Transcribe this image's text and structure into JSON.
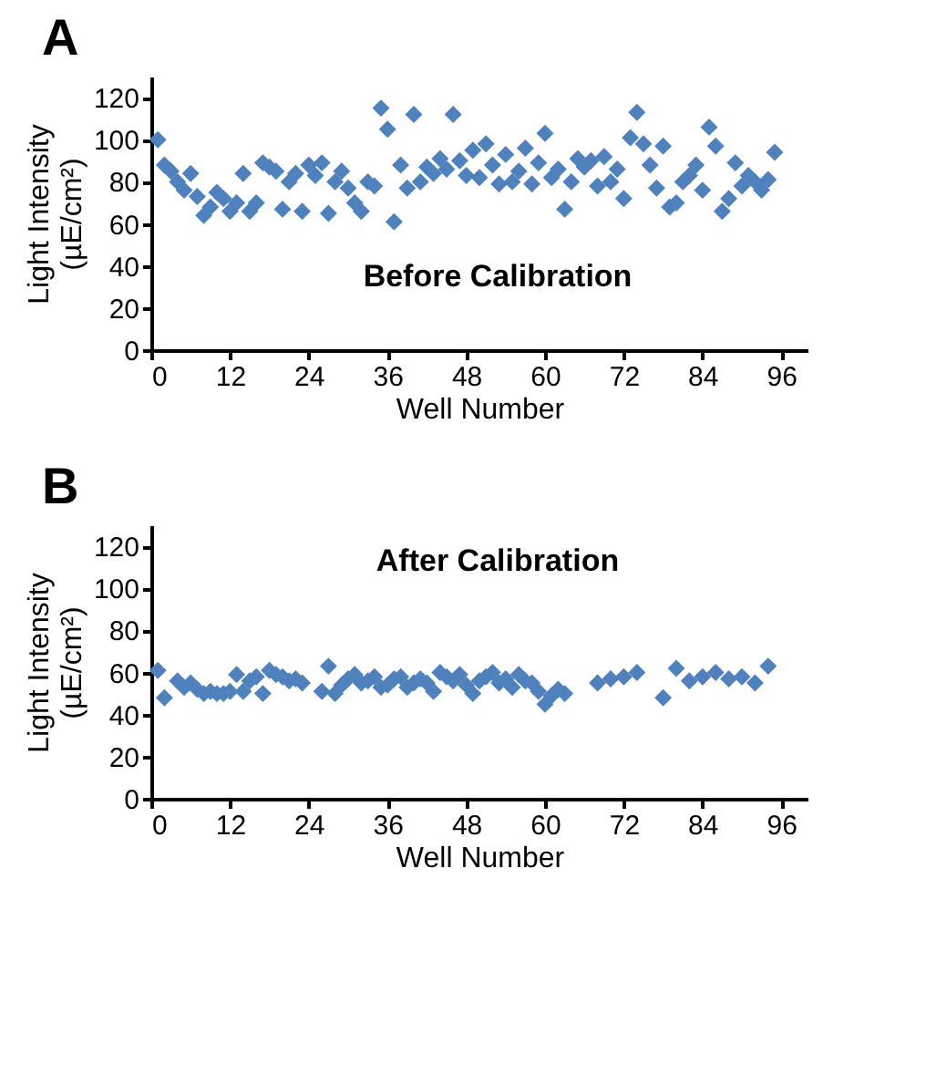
{
  "chart_data": [
    {
      "type": "scatter",
      "title": "A",
      "xlabel": "Well Number",
      "ylabel": "Light Intensity\n(µE/cm²)",
      "annotations": [
        "Before Calibration"
      ],
      "marker": "diamond",
      "grid": false,
      "xlim": [
        0,
        100
      ],
      "ylim": [
        0,
        130
      ],
      "xticks": [
        0,
        12,
        24,
        36,
        48,
        60,
        72,
        84,
        96
      ],
      "yticks": [
        0,
        20,
        40,
        60,
        80,
        100,
        120
      ],
      "x": [
        1,
        2,
        3,
        4,
        5,
        6,
        7,
        8,
        9,
        10,
        11,
        12,
        13,
        14,
        15,
        16,
        17,
        18,
        19,
        20,
        21,
        22,
        23,
        24,
        25,
        26,
        27,
        28,
        29,
        30,
        31,
        32,
        33,
        34,
        35,
        36,
        37,
        38,
        39,
        40,
        41,
        42,
        43,
        44,
        45,
        46,
        47,
        48,
        49,
        50,
        51,
        52,
        53,
        54,
        55,
        56,
        57,
        58,
        59,
        60,
        61,
        62,
        63,
        64,
        65,
        66,
        67,
        68,
        69,
        70,
        71,
        72,
        73,
        74,
        75,
        76,
        77,
        78,
        79,
        80,
        81,
        82,
        83,
        84,
        85,
        86,
        87,
        88,
        89,
        90,
        91,
        92,
        93,
        94,
        95
      ],
      "series": [
        {
          "color": "#4f81bd",
          "values": [
            100,
            88,
            85,
            80,
            76,
            84,
            73,
            64,
            68,
            75,
            72,
            66,
            70,
            84,
            66,
            70,
            89,
            87,
            85,
            67,
            80,
            84,
            66,
            88,
            83,
            89,
            65,
            80,
            85,
            77,
            70,
            66,
            80,
            78,
            115,
            105,
            61,
            88,
            77,
            112,
            80,
            87,
            84,
            91,
            86,
            112,
            90,
            83,
            95,
            82,
            98,
            88,
            79,
            93,
            80,
            85,
            96,
            79,
            89,
            103,
            82,
            86,
            67,
            80,
            91,
            87,
            90,
            78,
            92,
            80,
            86,
            72,
            101,
            113,
            98,
            88,
            77,
            97,
            68,
            70,
            80,
            83,
            88,
            76,
            106,
            97,
            66,
            72,
            89,
            78,
            83,
            80,
            76,
            81,
            94
          ]
        }
      ]
    },
    {
      "type": "scatter",
      "title": "B",
      "xlabel": "Well Number",
      "ylabel": "Light Intensity\n(µE/cm²)",
      "annotations": [
        "After Calibration"
      ],
      "marker": "diamond",
      "grid": false,
      "xlim": [
        0,
        100
      ],
      "ylim": [
        0,
        130
      ],
      "xticks": [
        0,
        12,
        24,
        36,
        48,
        60,
        72,
        84,
        96
      ],
      "yticks": [
        0,
        20,
        40,
        60,
        80,
        100,
        120
      ],
      "x": [
        1,
        2,
        4,
        5,
        6,
        7,
        8,
        9,
        10,
        11,
        12,
        13,
        14,
        15,
        16,
        17,
        18,
        19,
        20,
        21,
        22,
        23,
        26,
        27,
        28,
        29,
        30,
        31,
        32,
        33,
        34,
        35,
        36,
        37,
        38,
        39,
        40,
        41,
        42,
        43,
        44,
        45,
        46,
        47,
        48,
        49,
        50,
        51,
        52,
        53,
        54,
        55,
        56,
        57,
        58,
        59,
        60,
        61,
        62,
        63,
        68,
        70,
        72,
        74,
        78,
        80,
        82,
        84,
        86,
        88,
        90,
        92,
        94
      ],
      "series": [
        {
          "color": "#4f81bd",
          "values": [
            61,
            48,
            56,
            53,
            55,
            52,
            50,
            51,
            50,
            50,
            51,
            59,
            51,
            56,
            58,
            50,
            61,
            59,
            58,
            56,
            57,
            55,
            51,
            63,
            50,
            54,
            57,
            59,
            55,
            56,
            58,
            53,
            54,
            57,
            58,
            53,
            55,
            57,
            55,
            51,
            60,
            58,
            56,
            59,
            54,
            50,
            56,
            58,
            60,
            55,
            57,
            53,
            59,
            56,
            55,
            51,
            45,
            49,
            52,
            50,
            55,
            57,
            58,
            60,
            48,
            62,
            56,
            58,
            60,
            57,
            58,
            55,
            63
          ]
        }
      ]
    }
  ]
}
